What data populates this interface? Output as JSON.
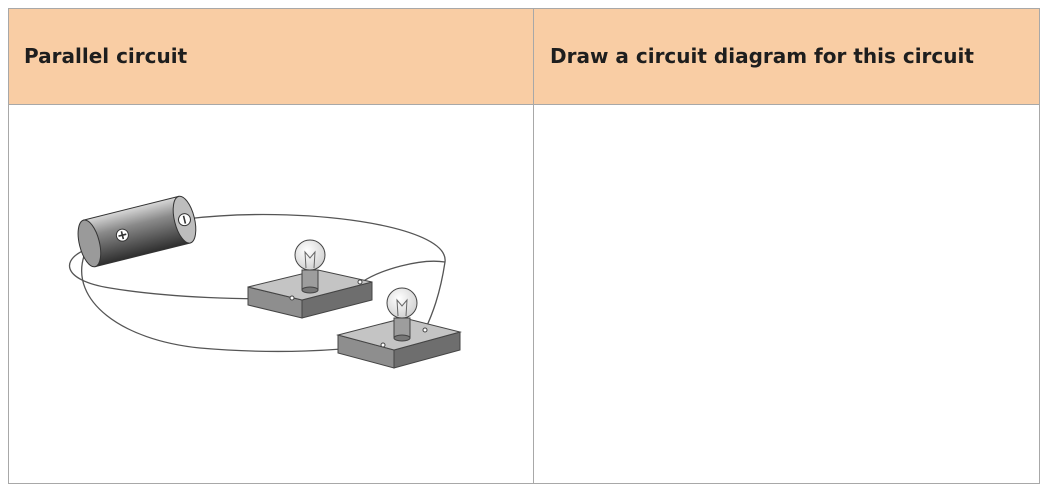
{
  "table": {
    "headers": [
      "Parallel circuit",
      "Draw a circuit diagram for this circuit"
    ]
  }
}
